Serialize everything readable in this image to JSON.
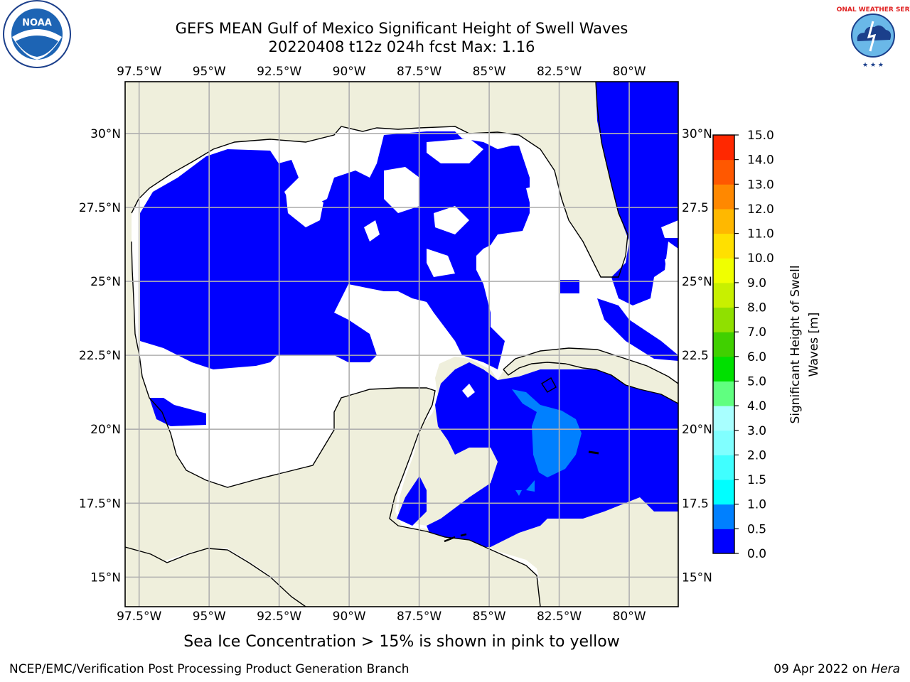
{
  "title": {
    "line1": "GEFS MEAN Gulf of Mexico Significant Height of Swell Waves",
    "line2": "20220408 t12z 024h fcst   Max: 1.16"
  },
  "logos": {
    "left": "NOAA",
    "right": "NATIONAL WEATHER SERVICE"
  },
  "map": {
    "lon_range": [
      -98,
      -78.25
    ],
    "lat_range": [
      14,
      31.75
    ],
    "lon_ticks": [
      {
        "value": -97.5,
        "label": "97.5°W"
      },
      {
        "value": -95,
        "label": "95°W"
      },
      {
        "value": -92.5,
        "label": "92.5°W"
      },
      {
        "value": -90,
        "label": "90°W"
      },
      {
        "value": -87.5,
        "label": "87.5°W"
      },
      {
        "value": -85,
        "label": "85°W"
      },
      {
        "value": -82.5,
        "label": "82.5°W"
      },
      {
        "value": -80,
        "label": "80°W"
      }
    ],
    "lat_ticks_left": [
      {
        "value": 30,
        "label": "30°N"
      },
      {
        "value": 27.5,
        "label": "27.5°N"
      },
      {
        "value": 25,
        "label": "25°N"
      },
      {
        "value": 22.5,
        "label": "22.5°N"
      },
      {
        "value": 20,
        "label": "20°N"
      },
      {
        "value": 17.5,
        "label": "17.5°N"
      },
      {
        "value": 15,
        "label": "15°N"
      }
    ],
    "lat_ticks_right": [
      {
        "value": 30,
        "label": "30°N"
      },
      {
        "value": 27.5,
        "label": "27.5"
      },
      {
        "value": 25,
        "label": "25°N"
      },
      {
        "value": 22.5,
        "label": "22.5"
      },
      {
        "value": 20,
        "label": "20°N"
      },
      {
        "value": 17.5,
        "label": "17.5"
      },
      {
        "value": 15,
        "label": "15°N"
      }
    ],
    "colors": {
      "land": "#efefdc",
      "water": "#ffffff",
      "grid": "#b0b0b0",
      "coast": "#000000"
    }
  },
  "colorbar": {
    "label_line1": "Significant Height of Swell",
    "label_line2": "Waves [m]",
    "ticks": [
      "0.0",
      "0.5",
      "1.0",
      "1.5",
      "2.0",
      "3.0",
      "4.0",
      "5.0",
      "6.0",
      "7.0",
      "8.0",
      "9.0",
      "10.0",
      "11.0",
      "12.0",
      "13.0",
      "14.0",
      "15.0"
    ],
    "colors": [
      "#0000ff",
      "#0080ff",
      "#00ffff",
      "#40ffff",
      "#80ffff",
      "#a8ffff",
      "#60ff80",
      "#00e000",
      "#40d000",
      "#90e000",
      "#c8f000",
      "#f0ff00",
      "#ffe000",
      "#ffb800",
      "#ff8800",
      "#ff5800",
      "#ff2800",
      "#ff0000"
    ]
  },
  "footer": {
    "ice_note": "Sea Ice Concentration > 15% is shown in pink to yellow",
    "branch": "NCEP/EMC/Verification Post Processing Product Generation Branch",
    "date_prefix": "09 Apr 2022 on ",
    "machine": "Hera"
  }
}
